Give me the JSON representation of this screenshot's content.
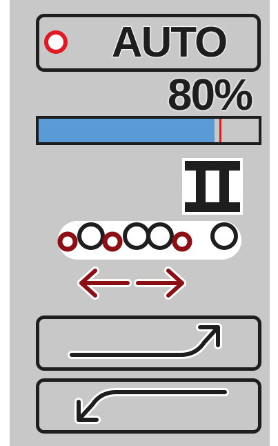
{
  "auto_button": {
    "label": "AUTO",
    "indicator_color": "#e01a22"
  },
  "progress": {
    "percent_label": "80%",
    "fill_fraction": 0.8,
    "marker_fraction": 0.82,
    "fill_color": "#5b9bd5",
    "marker_color": "#e01a22"
  },
  "icons": {
    "mode_icon": "roman-numeral-two-icon",
    "roller_icon": "alternating-rollers-icon",
    "spread_icon": "left-right-arrows-icon",
    "raise_icon": "curved-arrow-up-right-icon",
    "lower_icon": "curved-arrow-down-left-icon"
  },
  "colors": {
    "panel": "#c8c8c8",
    "dark": "#1e1e1e",
    "accent_red": "#8b0f14",
    "white": "#ffffff"
  }
}
